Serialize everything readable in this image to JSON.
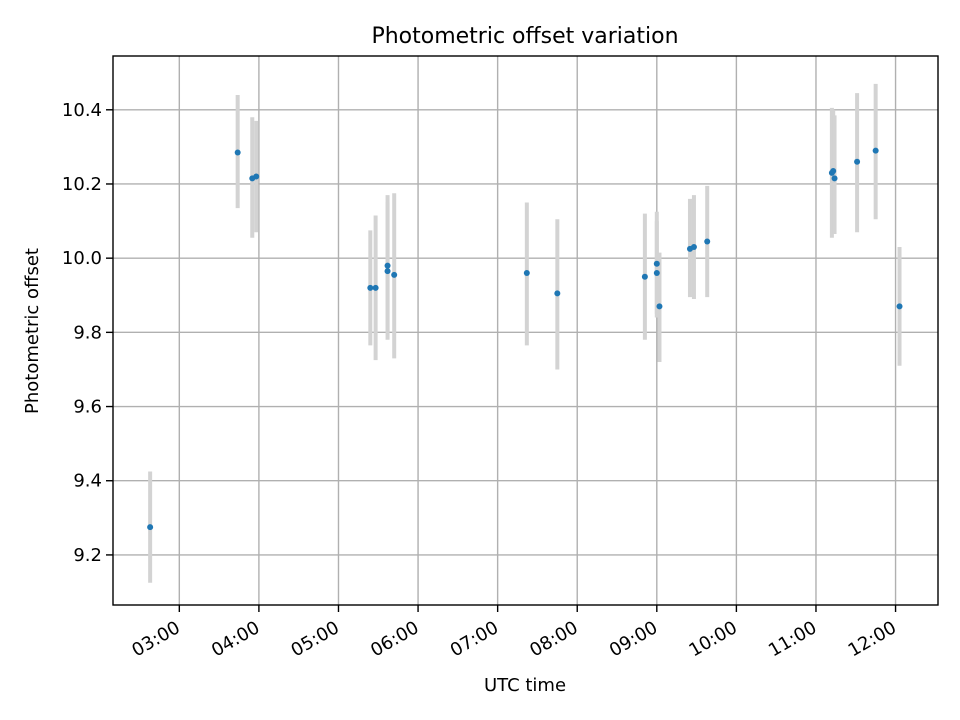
{
  "chart_data": {
    "type": "scatter",
    "title": "Photometric offset variation",
    "xlabel": "UTC time",
    "ylabel": "Photometric offset",
    "x_type": "time",
    "xlim": [
      "02:10",
      "12:32"
    ],
    "ylim": [
      9.065,
      10.545
    ],
    "xticks": [
      "03:00",
      "04:00",
      "05:00",
      "06:00",
      "07:00",
      "08:00",
      "09:00",
      "10:00",
      "11:00",
      "12:00"
    ],
    "yticks": [
      9.2,
      9.4,
      9.6,
      9.8,
      10.0,
      10.2,
      10.4
    ],
    "ytick_labels": [
      "9.2",
      "9.4",
      "9.6",
      "9.8",
      "10.0",
      "10.2",
      "10.4"
    ],
    "grid": true,
    "colors": {
      "points": "#1f77b4",
      "error_bars": "#d3d3d3"
    },
    "series": [
      {
        "points": [
          {
            "x": "02:38",
            "y": 9.275,
            "ymin": 9.125,
            "ymax": 9.425
          },
          {
            "x": "03:44",
            "y": 10.285,
            "ymin": 10.135,
            "ymax": 10.44
          },
          {
            "x": "03:55",
            "y": 10.215,
            "ymin": 10.055,
            "ymax": 10.38
          },
          {
            "x": "03:58",
            "y": 10.22,
            "ymin": 10.07,
            "ymax": 10.37
          },
          {
            "x": "05:24",
            "y": 9.92,
            "ymin": 9.765,
            "ymax": 10.075
          },
          {
            "x": "05:28",
            "y": 9.92,
            "ymin": 9.725,
            "ymax": 10.115
          },
          {
            "x": "05:37",
            "y": 9.98,
            "ymin": 9.8,
            "ymax": 10.17
          },
          {
            "x": "05:37",
            "y": 9.965,
            "ymin": 9.78,
            "ymax": 10.15
          },
          {
            "x": "05:42",
            "y": 9.955,
            "ymin": 9.73,
            "ymax": 10.175
          },
          {
            "x": "07:22",
            "y": 9.96,
            "ymin": 9.765,
            "ymax": 10.15
          },
          {
            "x": "07:45",
            "y": 9.905,
            "ymin": 9.7,
            "ymax": 10.105
          },
          {
            "x": "08:51",
            "y": 9.95,
            "ymin": 9.78,
            "ymax": 10.12
          },
          {
            "x": "09:00",
            "y": 9.985,
            "ymin": 9.85,
            "ymax": 10.125
          },
          {
            "x": "09:00",
            "y": 9.96,
            "ymin": 9.84,
            "ymax": 10.1
          },
          {
            "x": "09:02",
            "y": 9.87,
            "ymin": 9.72,
            "ymax": 10.015
          },
          {
            "x": "09:25",
            "y": 10.025,
            "ymin": 9.895,
            "ymax": 10.16
          },
          {
            "x": "09:28",
            "y": 10.03,
            "ymin": 9.89,
            "ymax": 10.17
          },
          {
            "x": "09:38",
            "y": 10.045,
            "ymin": 9.895,
            "ymax": 10.195
          },
          {
            "x": "11:12",
            "y": 10.23,
            "ymin": 10.055,
            "ymax": 10.405
          },
          {
            "x": "11:13",
            "y": 10.235,
            "ymin": 10.065,
            "ymax": 10.4
          },
          {
            "x": "11:14",
            "y": 10.215,
            "ymin": 10.065,
            "ymax": 10.385
          },
          {
            "x": "11:31",
            "y": 10.26,
            "ymin": 10.07,
            "ymax": 10.445
          },
          {
            "x": "11:45",
            "y": 10.29,
            "ymin": 10.105,
            "ymax": 10.47
          },
          {
            "x": "12:03",
            "y": 9.87,
            "ymin": 9.71,
            "ymax": 10.03
          }
        ]
      }
    ]
  }
}
